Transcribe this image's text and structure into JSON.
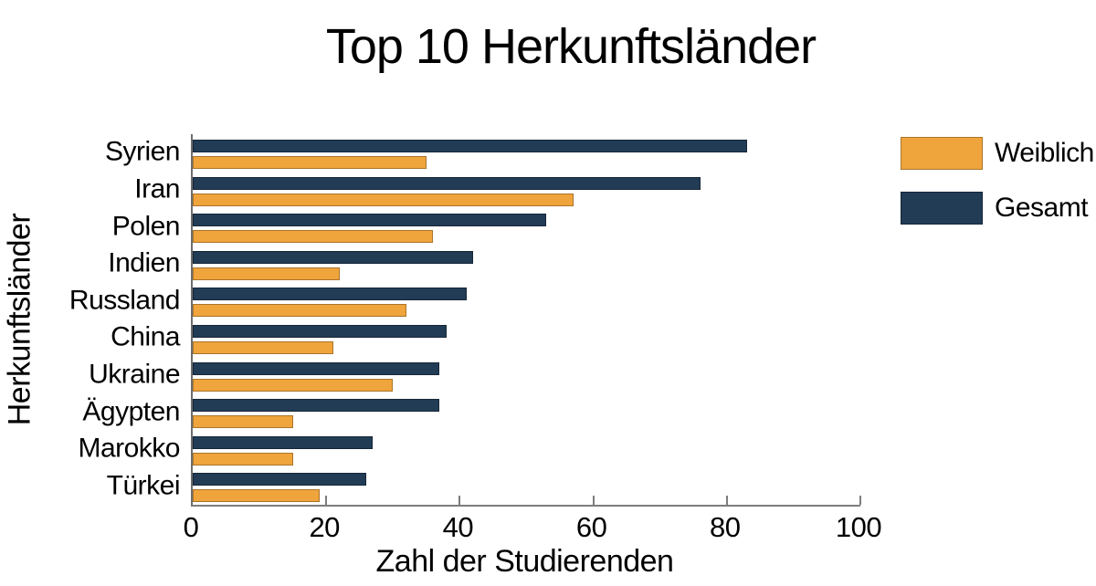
{
  "figure": {
    "background": "#ffffff",
    "axis_color": "#7d7d7d",
    "text_color": "#000000"
  },
  "chart_data": {
    "type": "bar",
    "orientation": "horizontal",
    "title": "Top 10 Herkunftsländer",
    "xlabel": "Zahl der Studierenden",
    "ylabel": "Herkunftsländer",
    "categories": [
      "Syrien",
      "Iran",
      "Polen",
      "Indien",
      "Russland",
      "China",
      "Ukraine",
      "Ägypten",
      "Marokko",
      "Türkei"
    ],
    "series": [
      {
        "name": "Weiblich",
        "color": "#F0A43C",
        "edge_color": "#A9752B",
        "values": [
          35,
          57,
          36,
          22,
          32,
          21,
          30,
          15,
          15,
          19
        ]
      },
      {
        "name": "Gesamt",
        "color": "#223C55",
        "edge_color": "#152638",
        "values": [
          83,
          76,
          53,
          42,
          41,
          38,
          37,
          37,
          27,
          26
        ]
      }
    ],
    "xlim": [
      0,
      100
    ],
    "xticks": [
      "0",
      "20",
      "40",
      "60",
      "80",
      "100"
    ],
    "legend": {
      "entries": [
        "Weiblich",
        "Gesamt"
      ],
      "position": "outside-upper-right"
    },
    "grid": false
  }
}
